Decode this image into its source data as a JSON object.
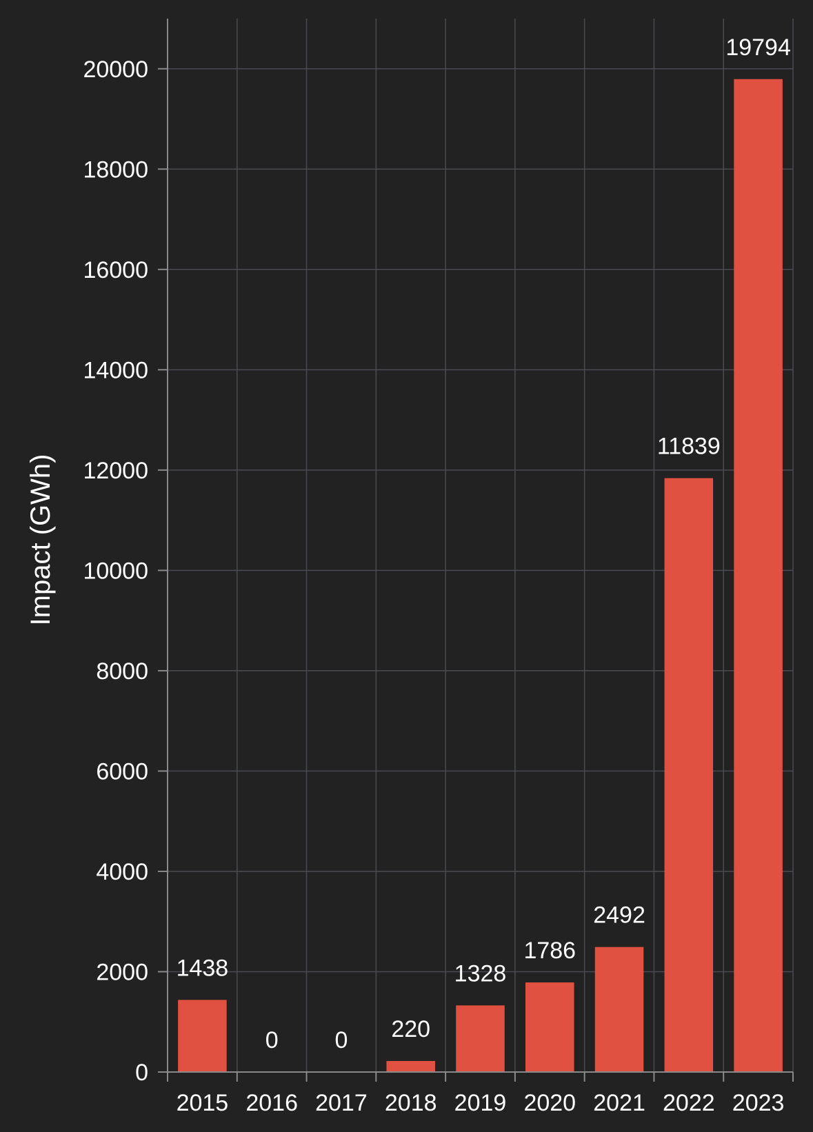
{
  "chart_data": {
    "type": "bar",
    "title": "",
    "xlabel": "",
    "ylabel": "Impact (GWh)",
    "categories": [
      "2015",
      "2016",
      "2017",
      "2018",
      "2019",
      "2020",
      "2021",
      "2022",
      "2023"
    ],
    "values": [
      1438,
      0,
      0,
      220,
      1328,
      1786,
      2492,
      11839,
      19794
    ],
    "data_labels": [
      "1438",
      "0",
      "0",
      "220",
      "1328",
      "1786",
      "2492",
      "11839",
      "19794"
    ],
    "yticks": [
      0,
      2000,
      4000,
      6000,
      8000,
      10000,
      12000,
      14000,
      16000,
      18000,
      20000
    ],
    "ytick_labels": [
      "0",
      "2000",
      "4000",
      "6000",
      "8000",
      "10000",
      "12000",
      "14000",
      "16000",
      "18000",
      "20000"
    ],
    "ylim": [
      0,
      21000
    ],
    "grid": true,
    "legend": "none",
    "colors": {
      "background": "#222222",
      "bar": "#e05142",
      "grid": "#4a4b52",
      "axis": "#8a8a8a",
      "text": "#ffffff"
    }
  }
}
